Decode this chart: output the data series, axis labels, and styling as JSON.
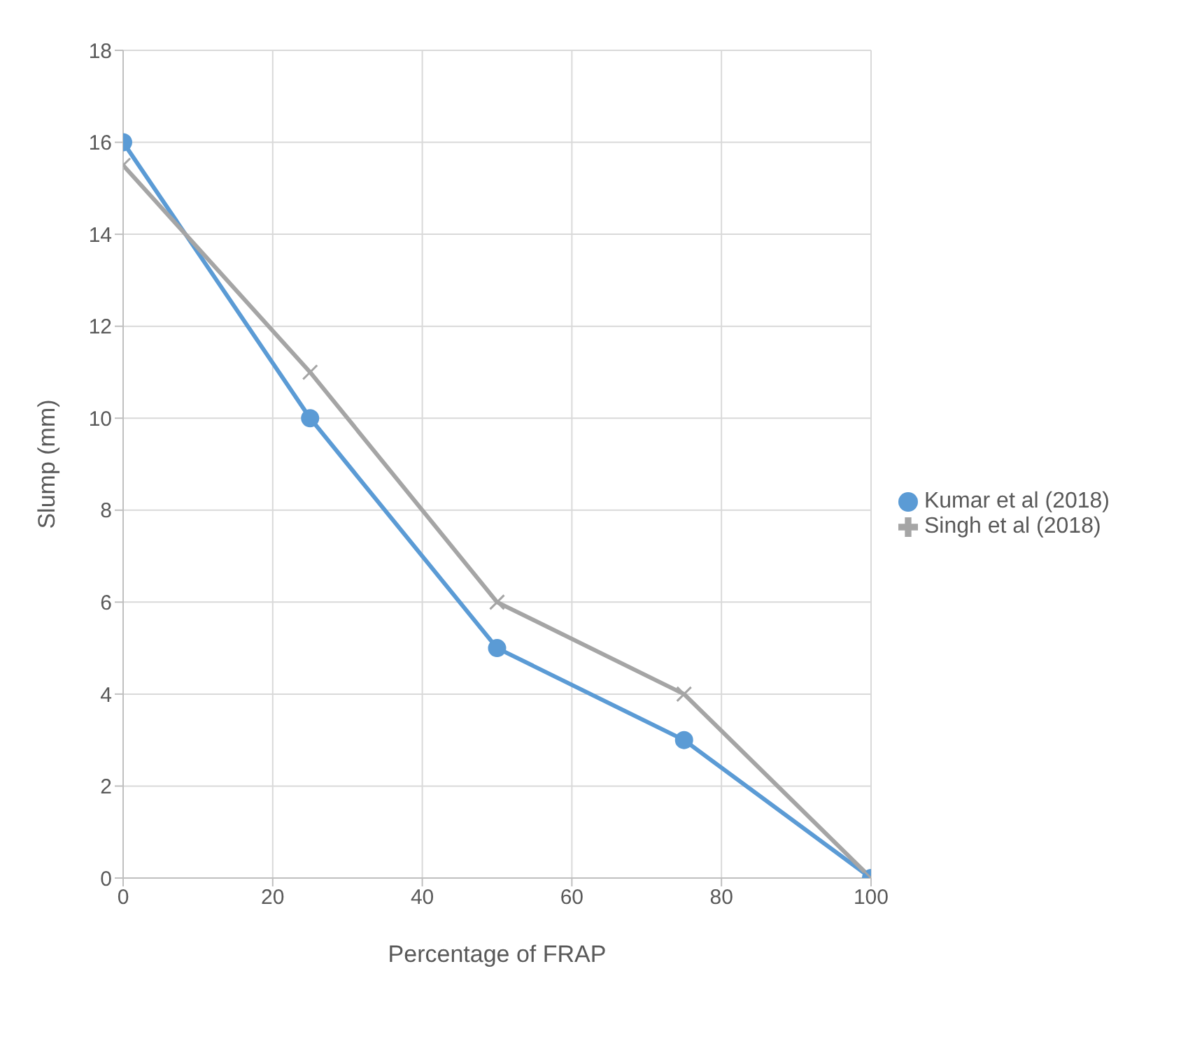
{
  "chart_data": {
    "type": "line",
    "xlabel": "Percentage of FRAP",
    "ylabel": "Slump (mm)",
    "x": [
      0,
      25,
      50,
      75,
      100
    ],
    "xlim": [
      0,
      100
    ],
    "xticks": [
      0,
      20,
      40,
      60,
      80,
      100
    ],
    "ylim": [
      0,
      18
    ],
    "yticks": [
      0,
      2,
      4,
      6,
      8,
      10,
      12,
      14,
      16,
      18
    ],
    "grid": true,
    "legend": "right",
    "line_style": "solid",
    "series": [
      {
        "name": "Kumar et al (2018)",
        "color": "#5b9bd5",
        "marker": "circle",
        "values": [
          16,
          10,
          5,
          3,
          0
        ]
      },
      {
        "name": "Singh et al (2018)",
        "color": "#a5a5a5",
        "marker": "cross",
        "values": [
          15.5,
          11,
          6,
          4,
          0
        ]
      }
    ]
  }
}
